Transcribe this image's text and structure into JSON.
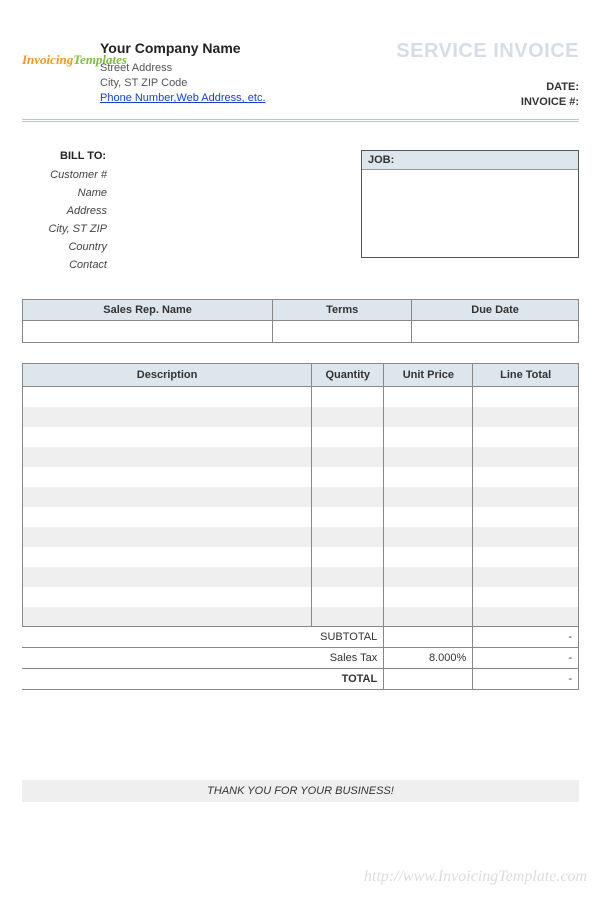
{
  "header": {
    "logo_line1": "Invoicing",
    "logo_line2": "Templates",
    "company_name": "Your Company Name",
    "street": "Street Address",
    "city_line": "City, ST  ZIP Code",
    "link_text": "Phone Number,Web Address, etc.",
    "title": "SERVICE INVOICE",
    "date_label": "DATE:",
    "invoice_num_label": "INVOICE #:"
  },
  "billto": {
    "title": "BILL TO:",
    "customer_no": "Customer #",
    "name": "Name",
    "address": "Address",
    "city": "City, ST ZIP",
    "country": "Country",
    "contact": "Contact"
  },
  "job": {
    "label": "JOB:"
  },
  "meta_table": {
    "sales_rep": "Sales Rep. Name",
    "terms": "Terms",
    "due_date": "Due Date"
  },
  "items": {
    "headers": {
      "description": "Description",
      "quantity": "Quantity",
      "unit_price": "Unit Price",
      "line_total": "Line Total"
    },
    "row_count": 12
  },
  "totals": {
    "subtotal_label": "SUBTOTAL",
    "subtotal_value": "-",
    "tax_label": "Sales Tax",
    "tax_rate": "8.000%",
    "tax_value": "-",
    "total_label": "TOTAL",
    "total_value": "-"
  },
  "footer": {
    "thanks": "THANK YOU FOR YOUR BUSINESS!",
    "watermark": "http://www.InvoicingTemplate.com"
  },
  "colors": {
    "header_bg": "#dde6ec",
    "alt_row": "#efefef",
    "border": "#888888",
    "title_color": "#d6dde4"
  }
}
